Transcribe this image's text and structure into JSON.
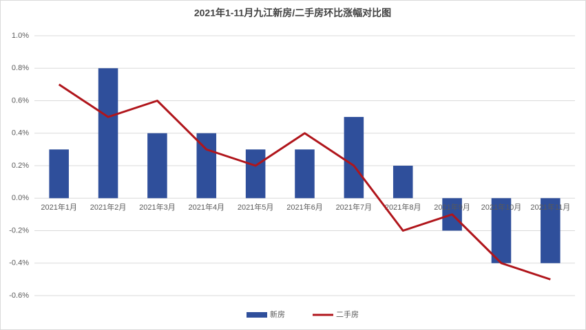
{
  "chart_data": {
    "type": "combo",
    "title": "2021年1-11月九江新房/二手房环比涨幅对比图",
    "categories": [
      "2021年1月",
      "2021年2月",
      "2021年3月",
      "2021年4月",
      "2021年5月",
      "2021年6月",
      "2021年7月",
      "2021年8月",
      "2021年9月",
      "2021年10月",
      "2021年11月"
    ],
    "series": [
      {
        "name": "新房",
        "type": "bar",
        "color": "#2f4f9b",
        "values": [
          0.3,
          0.8,
          0.4,
          0.4,
          0.3,
          0.3,
          0.5,
          0.2,
          -0.2,
          -0.4,
          -0.4
        ]
      },
      {
        "name": "二手房",
        "type": "line",
        "color": "#b0151b",
        "values": [
          0.7,
          0.5,
          0.6,
          0.3,
          0.2,
          0.4,
          0.2,
          -0.2,
          -0.1,
          -0.4,
          -0.5
        ]
      }
    ],
    "ylim": [
      -0.6,
      1.0
    ],
    "yticks": [
      {
        "value": -0.6,
        "label": "-0.6%"
      },
      {
        "value": -0.4,
        "label": "-0.4%"
      },
      {
        "value": -0.2,
        "label": "-0.2%"
      },
      {
        "value": 0,
        "label": "0.0%"
      },
      {
        "value": 0.2,
        "label": "0.2%"
      },
      {
        "value": 0.4,
        "label": "0.4%"
      },
      {
        "value": 0.6,
        "label": "0.6%"
      },
      {
        "value": 0.8,
        "label": "0.8%"
      },
      {
        "value": 1.0,
        "label": "1.0%"
      }
    ],
    "grid": true,
    "legend": "bottom"
  }
}
